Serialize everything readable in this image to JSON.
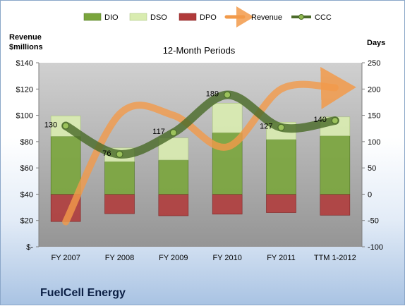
{
  "company": "FuelCell Energy",
  "chart_data": {
    "type": "bar",
    "title": "12-Month Periods",
    "left_axis_label": [
      "Revenue",
      "$millions"
    ],
    "right_axis_label": "Days",
    "categories": [
      "FY 2007",
      "FY 2008",
      "FY 2009",
      "FY 2010",
      "FY 2011",
      "TTM 1-2012"
    ],
    "left_ylim": [
      0,
      140
    ],
    "left_ticks": [
      "$-",
      "$20",
      "$40",
      "$60",
      "$80",
      "$100",
      "$120",
      "$140"
    ],
    "right_ylim": [
      -100,
      250
    ],
    "right_ticks": [
      "-100",
      "-50",
      "0",
      "50",
      "100",
      "150",
      "200",
      "250"
    ],
    "legend": [
      "DIO",
      "DSO",
      "DPO",
      "Revenue",
      "CCC"
    ],
    "legend_position": "top",
    "grid": false,
    "series": [
      {
        "name": "DIO",
        "axis": "right",
        "type": "stacked-bar",
        "values": [
          110,
          62,
          65,
          117,
          104,
          111
        ]
      },
      {
        "name": "DSO",
        "axis": "right",
        "type": "stacked-bar",
        "values": [
          39,
          26,
          42,
          56,
          33,
          36
        ]
      },
      {
        "name": "DPO",
        "axis": "right",
        "type": "negative-bar",
        "values": [
          -52,
          -37,
          -41,
          -38,
          -35,
          -40
        ]
      },
      {
        "name": "Revenue",
        "axis": "left",
        "type": "line",
        "values": [
          19,
          101,
          100,
          76,
          120,
          121
        ]
      },
      {
        "name": "CCC",
        "axis": "right",
        "type": "line",
        "values": [
          130,
          76,
          117,
          189,
          127,
          140
        ]
      }
    ],
    "data_labels": [
      "130",
      "76",
      "117",
      "189",
      "127",
      "140"
    ],
    "colors": {
      "DIO": "#7aa53c",
      "DSO": "#d9ecb0",
      "DPO": "#b03a3a",
      "Revenue": "#f29a4a",
      "CCC": "#4b6b2a",
      "plot_bg": "#a8a8a8"
    }
  }
}
